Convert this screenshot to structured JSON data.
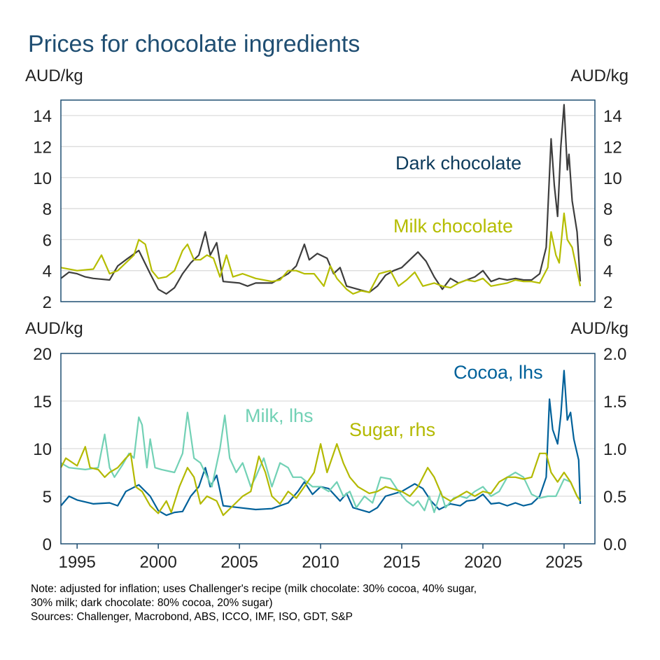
{
  "title": "Prices for chocolate ingredients",
  "notes": [
    "Note: adjusted for inflation; uses Challenger's recipe (milk chocolate: 30% cocoa, 40% sugar,",
    "30% milk; dark chocolate: 80% cocoa, 20% sugar)",
    "Sources: Challenger, Macrobond, ABS, ICCO, IMF, ISO, GDT, S&P"
  ],
  "chart_data": [
    {
      "type": "line",
      "ylabel_left": "AUD/kg",
      "ylabel_right": "AUD/kg",
      "ylim": [
        2,
        15
      ],
      "yticks": [
        "2",
        "4",
        "6",
        "8",
        "10",
        "12",
        "14"
      ],
      "xlim": [
        1994,
        2026.9
      ],
      "grid": true,
      "series": [
        {
          "name": "Dark chocolate",
          "color": "#3d3d3d",
          "label_color": "#0d3b5c",
          "x": [
            1994,
            1994.5,
            1995,
            1995.5,
            1996,
            1997,
            1997.5,
            1998,
            1998.8,
            1999.5,
            2000,
            2000.5,
            2001,
            2001.5,
            2002,
            2002.5,
            2002.9,
            2003.2,
            2003.6,
            2004,
            2005,
            2005.5,
            2006,
            2007,
            2008,
            2008.5,
            2009,
            2009.3,
            2009.8,
            2010.4,
            2010.8,
            2011.2,
            2011.6,
            2012.3,
            2013,
            2013.5,
            2014,
            2014.5,
            2015,
            2015.5,
            2016,
            2016.5,
            2017,
            2017.5,
            2018,
            2018.5,
            2019,
            2019.5,
            2020,
            2020.5,
            2021,
            2021.5,
            2022,
            2022.5,
            2023,
            2023.5,
            2023.9,
            2024.2,
            2024.4,
            2024.6,
            2024.8,
            2025.0,
            2025.2,
            2025.3,
            2025.5,
            2025.8,
            2026.0
          ],
          "y": [
            3.5,
            3.9,
            3.8,
            3.6,
            3.5,
            3.4,
            4.3,
            4.7,
            5.3,
            3.8,
            2.8,
            2.5,
            2.9,
            3.8,
            4.5,
            5.0,
            6.5,
            5.0,
            5.8,
            3.3,
            3.2,
            3.0,
            3.2,
            3.2,
            3.8,
            4.3,
            5.7,
            4.7,
            5.1,
            4.8,
            3.8,
            4.2,
            3.0,
            2.8,
            2.6,
            3.0,
            3.7,
            4.0,
            4.2,
            4.7,
            5.2,
            4.6,
            3.6,
            2.8,
            3.5,
            3.2,
            3.4,
            3.6,
            4.0,
            3.3,
            3.5,
            3.4,
            3.5,
            3.4,
            3.4,
            3.8,
            5.5,
            12.5,
            9.5,
            7.5,
            12.0,
            14.7,
            10.5,
            11.5,
            8.5,
            6.5,
            3.3
          ]
        },
        {
          "name": "Milk chocolate",
          "color": "#b5bd00",
          "label_color": "#b5bd00",
          "x": [
            1994,
            1995,
            1996,
            1996.5,
            1997,
            1997.5,
            1998.5,
            1998.8,
            1999.2,
            1999.6,
            2000,
            2000.5,
            2001,
            2001.5,
            2001.8,
            2002.2,
            2002.6,
            2003,
            2003.4,
            2003.8,
            2004.2,
            2004.6,
            2005.2,
            2006,
            2007,
            2007.5,
            2008,
            2008.5,
            2009,
            2009.6,
            2010.2,
            2010.6,
            2011,
            2011.6,
            2012,
            2012.5,
            2013,
            2013.6,
            2014.3,
            2014.8,
            2015.3,
            2015.8,
            2016.3,
            2017,
            2017.5,
            2018,
            2018.5,
            2019,
            2019.5,
            2020,
            2020.5,
            2021,
            2021.5,
            2022,
            2022.5,
            2023,
            2023.5,
            2024,
            2024.2,
            2024.5,
            2024.7,
            2025.0,
            2025.2,
            2025.5,
            2025.8,
            2026.0
          ],
          "y": [
            4.2,
            4.0,
            4.1,
            5.0,
            3.8,
            4.0,
            5.0,
            6.0,
            5.7,
            4.0,
            3.5,
            3.6,
            4.0,
            5.3,
            5.7,
            4.7,
            4.7,
            5.0,
            4.8,
            3.6,
            5.0,
            3.6,
            3.8,
            3.5,
            3.3,
            3.4,
            4.0,
            4.0,
            3.8,
            3.8,
            3.0,
            4.3,
            3.5,
            2.8,
            2.5,
            2.7,
            2.6,
            3.8,
            4.0,
            3.0,
            3.4,
            3.9,
            3.0,
            3.2,
            3.0,
            2.9,
            3.2,
            3.4,
            3.3,
            3.5,
            3.0,
            3.1,
            3.2,
            3.4,
            3.3,
            3.3,
            3.2,
            4.2,
            6.5,
            5.0,
            4.5,
            7.7,
            6.0,
            5.5,
            4.0,
            3.0
          ]
        }
      ]
    },
    {
      "type": "line",
      "ylabel_left": "AUD/kg",
      "ylabel_right": "AUD/kg",
      "ylim_left": [
        0,
        20
      ],
      "ylim_right": [
        0,
        2
      ],
      "yticks_left": [
        "0",
        "5",
        "10",
        "15",
        "20"
      ],
      "yticks_right": [
        "0.0",
        "0.5",
        "1.0",
        "1.5",
        "2.0"
      ],
      "xticks": [
        "1995",
        "2000",
        "2005",
        "2010",
        "2015",
        "2020",
        "2025"
      ],
      "xlim": [
        1994,
        2026.9
      ],
      "grid": true,
      "series": [
        {
          "name": "Cocoa, lhs",
          "axis": "left",
          "color": "#00619a",
          "x": [
            1994,
            1994.5,
            1995,
            1996,
            1997,
            1997.5,
            1998,
            1998.8,
            1999.5,
            2000,
            2000.5,
            2001,
            2001.5,
            2002,
            2002.5,
            2002.9,
            2003.2,
            2003.6,
            2004,
            2005,
            2006,
            2007,
            2008,
            2008.6,
            2009,
            2009.5,
            2010,
            2010.5,
            2011.2,
            2011.6,
            2012,
            2013,
            2013.5,
            2014,
            2015,
            2015.8,
            2016.3,
            2016.8,
            2017.3,
            2018,
            2018.6,
            2019,
            2019.5,
            2020,
            2020.5,
            2021,
            2021.5,
            2022,
            2022.5,
            2023,
            2023.5,
            2023.9,
            2024.1,
            2024.3,
            2024.6,
            2024.8,
            2025.0,
            2025.2,
            2025.4,
            2025.6,
            2025.9,
            2026.0
          ],
          "y": [
            4.0,
            5.0,
            4.6,
            4.2,
            4.3,
            4.0,
            5.5,
            6.2,
            5.0,
            3.5,
            3.0,
            3.3,
            3.4,
            5.0,
            6.0,
            8.0,
            6.0,
            7.2,
            4.0,
            3.8,
            3.6,
            3.7,
            4.3,
            5.5,
            6.5,
            5.2,
            6.0,
            5.8,
            4.5,
            5.3,
            3.8,
            3.3,
            3.8,
            5.0,
            5.5,
            6.3,
            5.8,
            4.5,
            3.6,
            4.2,
            4.0,
            4.5,
            4.6,
            5.2,
            4.2,
            4.3,
            4.0,
            4.3,
            4.0,
            4.2,
            5.0,
            7.0,
            15.2,
            12.0,
            10.5,
            13.5,
            18.2,
            13.0,
            13.8,
            11.0,
            8.8,
            4.2
          ]
        },
        {
          "name": "Milk, lhs",
          "axis": "left",
          "color": "#72d1b5",
          "x": [
            1994,
            1994.5,
            1995.5,
            1996.3,
            1996.7,
            1997,
            1997.3,
            1997.8,
            1998.2,
            1998.5,
            1998.8,
            1999,
            1999.3,
            1999.5,
            1999.8,
            2000.2,
            2001,
            2001.5,
            2001.8,
            2002.2,
            2002.6,
            2003.3,
            2003.8,
            2004.1,
            2004.4,
            2004.8,
            2005.2,
            2005.7,
            2006,
            2006.5,
            2007,
            2007.5,
            2008,
            2008.3,
            2008.8,
            2009.5,
            2010,
            2010.5,
            2011,
            2011.4,
            2011.8,
            2012.2,
            2012.7,
            2013.2,
            2013.7,
            2014.3,
            2014.8,
            2015.3,
            2015.7,
            2016,
            2016.4,
            2016.7,
            2017,
            2017.4,
            2017.7,
            2018.2,
            2018.6,
            2019,
            2019.5,
            2020,
            2020.5,
            2021,
            2021.5,
            2022,
            2022.5,
            2023,
            2023.5,
            2024,
            2024.5,
            2025,
            2025.4,
            2025.8,
            2026.0
          ],
          "y": [
            8.5,
            8.0,
            7.8,
            8.0,
            11.5,
            8.0,
            7.0,
            8.3,
            9.5,
            9.0,
            13.3,
            12.5,
            8.0,
            11.0,
            8.0,
            7.8,
            7.5,
            9.5,
            13.8,
            9.0,
            8.5,
            6.0,
            10.0,
            13.5,
            9.0,
            7.5,
            8.5,
            6.0,
            7.0,
            9.0,
            6.0,
            8.5,
            8.0,
            7.0,
            7.0,
            6.0,
            6.0,
            5.5,
            6.5,
            5.0,
            5.5,
            3.8,
            5.0,
            4.3,
            7.0,
            6.8,
            5.5,
            4.5,
            4.0,
            4.5,
            3.5,
            5.0,
            3.3,
            5.5,
            3.8,
            4.8,
            5.0,
            4.8,
            5.5,
            6.0,
            5.0,
            5.5,
            7.0,
            7.5,
            7.0,
            5.2,
            4.8,
            5.0,
            5.0,
            6.8,
            6.5,
            5.0,
            4.5
          ]
        },
        {
          "name": "Sugar, rhs",
          "axis": "right",
          "color": "#b3b900",
          "x": [
            1994,
            1994.3,
            1995,
            1995.5,
            1995.8,
            1996.3,
            1996.7,
            1997,
            1997.5,
            1998,
            1998.3,
            1998.6,
            1999,
            1999.5,
            2000,
            2000.5,
            2000.8,
            2001.3,
            2001.8,
            2002.2,
            2002.6,
            2003,
            2003.6,
            2004,
            2004.6,
            2005.2,
            2005.7,
            2006.2,
            2006.6,
            2007,
            2007.5,
            2008,
            2008.5,
            2009,
            2009.6,
            2010,
            2010.4,
            2011,
            2011.4,
            2011.8,
            2012.3,
            2013,
            2013.5,
            2014,
            2015,
            2015.5,
            2016,
            2016.6,
            2017,
            2017.5,
            2018,
            2018.5,
            2019,
            2019.5,
            2020,
            2020.5,
            2021,
            2021.5,
            2022,
            2022.5,
            2023,
            2023.5,
            2023.9,
            2024.2,
            2024.6,
            2025,
            2025.4,
            2025.8,
            2026.0
          ],
          "y": [
            0.8,
            0.9,
            0.82,
            1.02,
            0.8,
            0.78,
            0.7,
            0.75,
            0.8,
            0.9,
            0.95,
            0.6,
            0.55,
            0.4,
            0.32,
            0.45,
            0.33,
            0.6,
            0.8,
            0.7,
            0.42,
            0.5,
            0.45,
            0.3,
            0.4,
            0.5,
            0.55,
            0.92,
            0.75,
            0.5,
            0.42,
            0.55,
            0.48,
            0.6,
            0.75,
            1.05,
            0.75,
            1.05,
            0.85,
            0.7,
            0.6,
            0.53,
            0.55,
            0.6,
            0.55,
            0.5,
            0.6,
            0.8,
            0.7,
            0.5,
            0.45,
            0.5,
            0.55,
            0.5,
            0.55,
            0.53,
            0.65,
            0.7,
            0.7,
            0.68,
            0.7,
            0.95,
            0.95,
            0.75,
            0.65,
            0.75,
            0.65,
            0.5,
            0.45
          ]
        }
      ]
    }
  ]
}
